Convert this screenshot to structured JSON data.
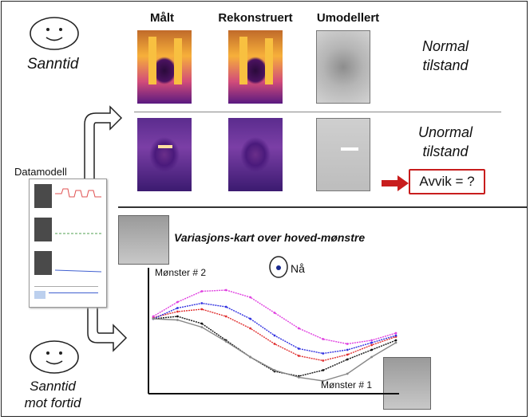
{
  "top": {
    "columns": [
      "Målt",
      "Rekonstruert",
      "Umodellert"
    ],
    "realtime_label": "Sanntid",
    "normal_state": [
      "Normal",
      "tilstand"
    ],
    "abnormal_state": [
      "Unormal",
      "tilstand"
    ],
    "deviation_label": "Avvik = ?"
  },
  "left": {
    "data_model_label": "Datamodell"
  },
  "bottom": {
    "title": "Variasjons-kart over hoved-mønstre",
    "realtime_past_label": [
      "Sanntid",
      "mot fortid"
    ],
    "axis_y_label": "Mønster # 2",
    "axis_x_label": "Mønster # 1",
    "now_label": "Nå"
  },
  "colors": {
    "deviation_border": "#c81d1d",
    "arrow": "#c81d1d",
    "series": [
      "#111111",
      "#e03030",
      "#3030e0",
      "#e040e0",
      "#888888"
    ]
  },
  "icons": [
    "smiley-face-icon",
    "curved-arrow-icon",
    "red-arrow-icon"
  ],
  "chart_data": {
    "type": "scatter",
    "title": "Variasjons-kart over hoved-mønstre",
    "xlabel": "Mønster # 1",
    "ylabel": "Mønster # 2",
    "grid": false,
    "series": [
      {
        "x": [
          0,
          1,
          2,
          3,
          4,
          5,
          6,
          7,
          8,
          9,
          10
        ],
        "y": [
          4.0,
          4.2,
          3.6,
          2.2,
          0.8,
          -0.4,
          -0.8,
          -0.3,
          0.6,
          1.4,
          2.2
        ]
      },
      {
        "x": [
          0,
          1,
          2,
          3,
          4,
          5,
          6,
          7,
          8,
          9,
          10
        ],
        "y": [
          4.1,
          4.6,
          4.8,
          4.2,
          3.2,
          1.9,
          0.9,
          0.5,
          1.0,
          1.8,
          2.5
        ]
      },
      {
        "x": [
          0,
          1,
          2,
          3,
          4,
          5,
          6,
          7,
          8,
          9,
          10
        ],
        "y": [
          4.0,
          4.9,
          5.3,
          5.0,
          4.0,
          2.6,
          1.5,
          1.1,
          1.4,
          2.0,
          2.6
        ]
      },
      {
        "x": [
          0,
          1,
          2,
          3,
          4,
          5,
          6,
          7,
          8,
          9,
          10
        ],
        "y": [
          4.2,
          5.4,
          6.3,
          6.4,
          5.8,
          4.5,
          3.2,
          2.3,
          1.9,
          2.2,
          2.8
        ]
      },
      {
        "x": [
          0,
          1,
          2,
          3,
          4,
          5,
          6,
          7,
          8,
          9,
          10
        ],
        "y": [
          4.0,
          3.9,
          3.3,
          2.1,
          0.8,
          -0.3,
          -0.9,
          -1.2,
          -0.6,
          0.8,
          2.0
        ]
      }
    ]
  }
}
